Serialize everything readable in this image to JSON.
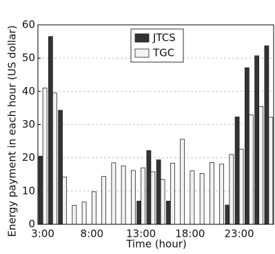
{
  "chart_data": {
    "type": "bar",
    "xlabel": "Time (hour)",
    "ylabel": "Energy payment in each hour (US dollar)",
    "categories": [
      "3:00",
      null,
      null,
      null,
      null,
      "8:00",
      null,
      null,
      null,
      null,
      "13:00",
      null,
      null,
      null,
      null,
      "18:00",
      null,
      null,
      null,
      null,
      "23:00",
      null,
      null,
      null
    ],
    "series": [
      {
        "name": "JTCS",
        "color": "#333333",
        "values": [
          20.5,
          56.5,
          34.3,
          0,
          0,
          0,
          0,
          0,
          0,
          0,
          7,
          22.2,
          19.4,
          7,
          0,
          0,
          0,
          0,
          0,
          5.8,
          32.3,
          47.1,
          50.7,
          53.7
        ]
      },
      {
        "name": "TGC",
        "color": "#f2f2f2",
        "values": [
          41,
          39.5,
          14.2,
          5.7,
          6.7,
          9.8,
          14.4,
          18.5,
          17.6,
          16.2,
          17,
          15.8,
          13.5,
          18.4,
          25.6,
          16.1,
          15.3,
          18.6,
          18.1,
          21,
          22.6,
          32.9,
          35.4,
          32.2
        ]
      }
    ],
    "ylim": [
      0,
      60
    ],
    "yticks": [
      0,
      10,
      20,
      30,
      40,
      50,
      60
    ],
    "grid": true,
    "legend": "upper center"
  }
}
